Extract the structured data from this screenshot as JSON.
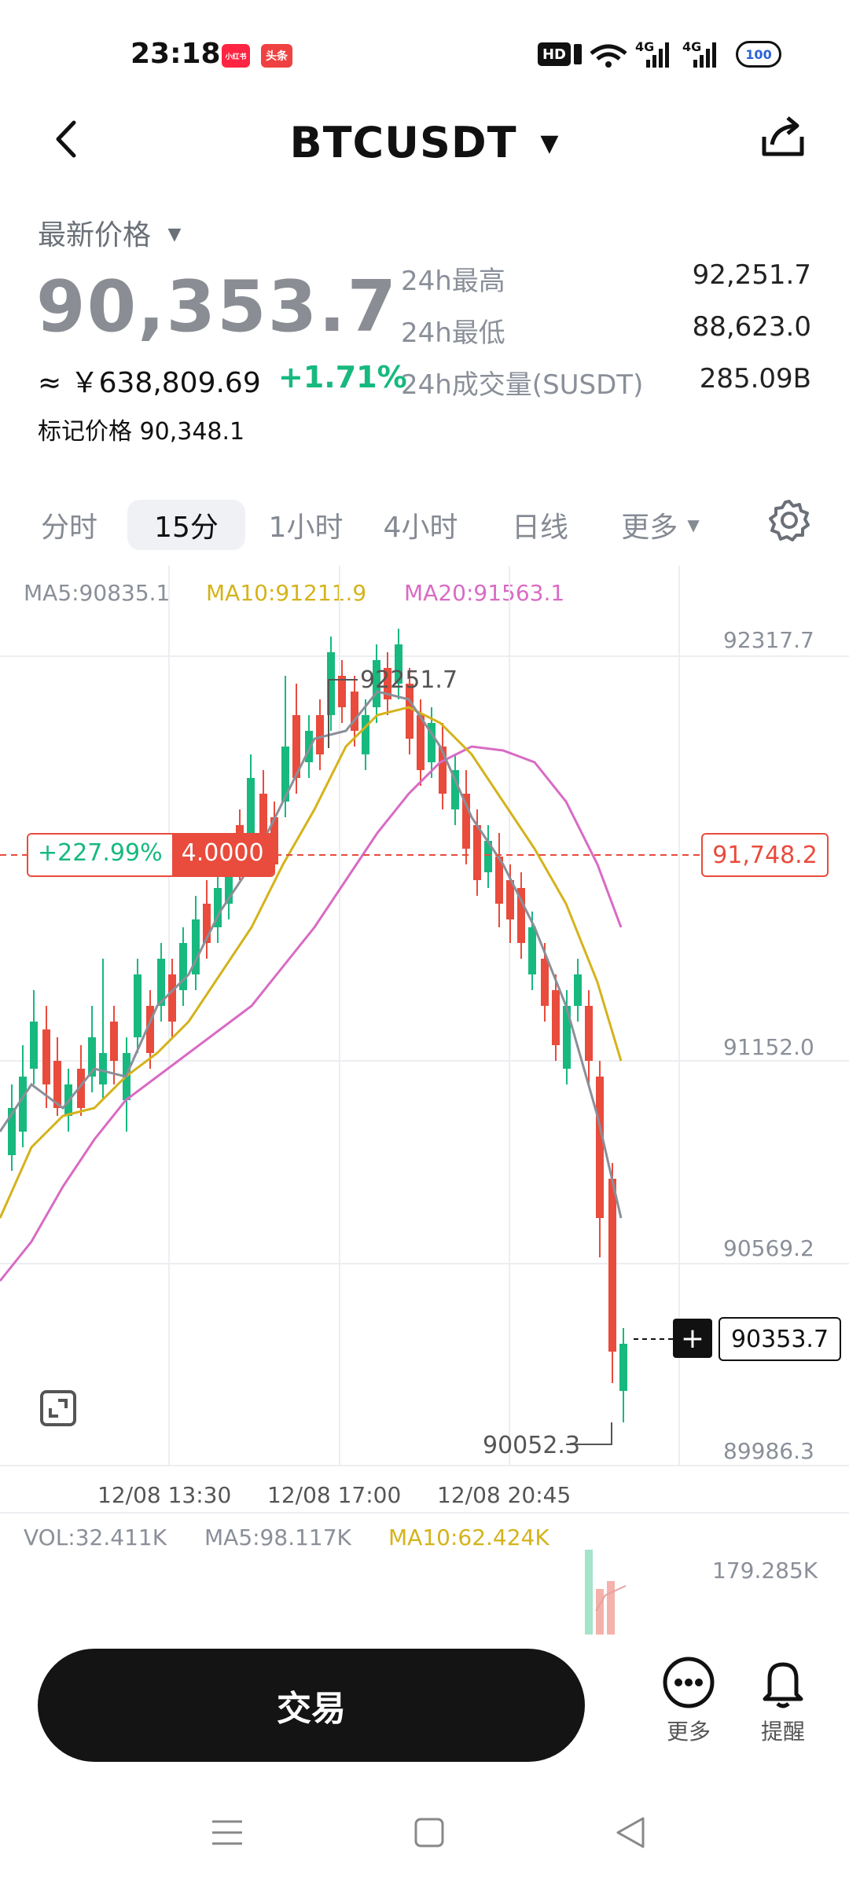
{
  "status_bar": {
    "time": "23:18",
    "app1": "小红书",
    "app2": "头条",
    "hd": "HD",
    "net1": "4G",
    "net2": "4G",
    "battery": "100"
  },
  "header": {
    "title": "BTCUSDT"
  },
  "price": {
    "label": "最新价格",
    "last": "90,353.7",
    "cny": "≈ ￥638,809.69",
    "change": "+1.71%",
    "mark": "标记价格 90,348.1",
    "stats": [
      {
        "label": "24h最高",
        "value": "92,251.7"
      },
      {
        "label": "24h最低",
        "value": "88,623.0"
      },
      {
        "label": "24h成交量(SUSDT)",
        "value": "285.09B"
      }
    ]
  },
  "tabs": [
    {
      "label": "分时"
    },
    {
      "label": "15分",
      "active": true
    },
    {
      "label": "1小时"
    },
    {
      "label": "4小时"
    },
    {
      "label": "日线"
    },
    {
      "label": "更多"
    }
  ],
  "ma": {
    "ma5": "MA5:90835.1",
    "ma10": "MA10:91211.9",
    "ma20": "MA20:91563.1"
  },
  "chart": {
    "price_axis": [
      "92317.7",
      "91152.0",
      "90569.2",
      "89986.3"
    ],
    "time_axis": [
      "12/08 13:30",
      "12/08 17:00",
      "12/08 20:45"
    ],
    "high_label": "92251.7",
    "low_label": "90052.3",
    "position_pnl": "+227.99%",
    "position_size": "4.0000",
    "position_price": "91,748.2",
    "current_price": "90353.7",
    "colors": {
      "up": "#17b97f",
      "down": "#e94b3c",
      "ma5": "#8a8f99",
      "ma10": "#d4b31b",
      "ma20": "#d86bc4"
    }
  },
  "volume": {
    "vol": "VOL:32.411K",
    "ma5": "MA5:98.117K",
    "ma10": "MA10:62.424K",
    "max": "179.285K"
  },
  "bottom": {
    "trade": "交易",
    "more": "更多",
    "alert": "提醒"
  }
}
